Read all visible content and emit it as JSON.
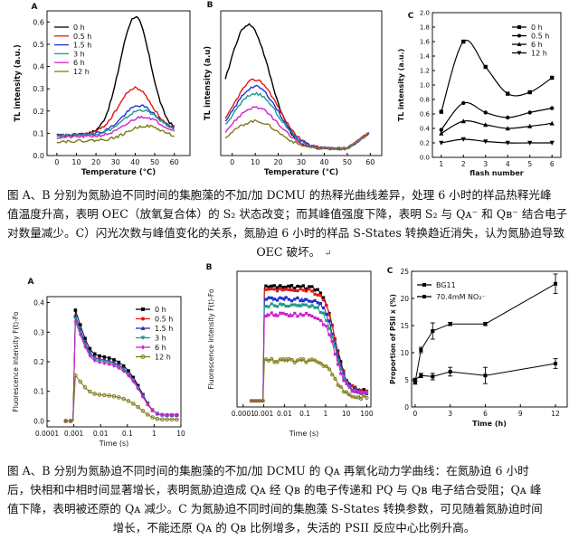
{
  "figure1": {
    "panelA": {
      "letter": "A",
      "chart_data": {
        "type": "line",
        "xlabel": "Temperature (°C)",
        "ylabel": "TL intensity (a.u.)",
        "xlim": [
          -5,
          68
        ],
        "ylim": [
          0,
          0.65
        ],
        "xticks": [
          "0",
          "10",
          "20",
          "30",
          "40",
          "50",
          "60"
        ],
        "yticks": [
          "0.0",
          "0.1",
          "0.2",
          "0.3",
          "0.4",
          "0.5",
          "0.6"
        ],
        "legend": "top-left",
        "series": [
          {
            "name": "0 h",
            "color": "#000000",
            "peak_x": 40,
            "peak_y": 0.62,
            "width": 11,
            "base": 0.1
          },
          {
            "name": "0.5 h",
            "color": "#e01818",
            "peak_x": 40,
            "peak_y": 0.3,
            "width": 12,
            "base": 0.1
          },
          {
            "name": "1.5 h",
            "color": "#2030d0",
            "peak_x": 42,
            "peak_y": 0.22,
            "width": 12,
            "base": 0.1
          },
          {
            "name": "3 h",
            "color": "#1f9a8a",
            "peak_x": 43,
            "peak_y": 0.2,
            "width": 12,
            "base": 0.1
          },
          {
            "name": "6 h",
            "color": "#d020d0",
            "peak_x": 44,
            "peak_y": 0.17,
            "width": 12,
            "base": 0.09
          },
          {
            "name": "12 h",
            "color": "#7d7d18",
            "peak_x": 45,
            "peak_y": 0.13,
            "width": 12,
            "base": 0.07
          }
        ]
      }
    },
    "panelB": {
      "letter": "B",
      "chart_data": {
        "type": "line",
        "xlabel": "Temperature (°C)",
        "ylabel": "TL intensity (a.u)",
        "xlim": [
          -5,
          65
        ],
        "xticks": [
          "0",
          "10",
          "20",
          "30",
          "40",
          "50",
          "60"
        ],
        "series": [
          {
            "name": "0 h",
            "color": "#000000",
            "peak_x": 7,
            "peak_y": 0.95,
            "width": 13,
            "base": 0.05
          },
          {
            "name": "0.5 h",
            "color": "#e01818",
            "peak_x": 10,
            "peak_y": 0.55,
            "width": 14,
            "base": 0.05
          },
          {
            "name": "1.5 h",
            "color": "#2030d0",
            "peak_x": 10,
            "peak_y": 0.5,
            "width": 14,
            "base": 0.05
          },
          {
            "name": "3 h",
            "color": "#1f9a8a",
            "peak_x": 10,
            "peak_y": 0.45,
            "width": 14,
            "base": 0.05
          },
          {
            "name": "6 h",
            "color": "#d020d0",
            "peak_x": 10,
            "peak_y": 0.35,
            "width": 14,
            "base": 0.05
          },
          {
            "name": "12 h",
            "color": "#7d7d18",
            "peak_x": 10,
            "peak_y": 0.25,
            "width": 14,
            "base": 0.05
          }
        ]
      }
    },
    "panelC": {
      "letter": "C",
      "chart_data": {
        "type": "line",
        "xlabel": "flash number",
        "ylabel": "TL intensity (a.u.)",
        "xlim": [
          0.6,
          6.4
        ],
        "ylim": [
          0,
          2.0
        ],
        "x": [
          1,
          2,
          3,
          4,
          5,
          6
        ],
        "xticks": [
          "1",
          "2",
          "3",
          "4",
          "5",
          "6"
        ],
        "yticks": [
          "0.0",
          "0.2",
          "0.4",
          "0.6",
          "0.8",
          "1.0",
          "1.2",
          "1.4",
          "1.6",
          "1.8",
          "2.0"
        ],
        "legend": "top-right",
        "series": [
          {
            "name": "0 h",
            "marker": "square",
            "values": [
              0.63,
              1.6,
              1.25,
              0.88,
              0.9,
              1.1
            ]
          },
          {
            "name": "0.5 h",
            "marker": "circle",
            "values": [
              0.38,
              0.75,
              0.62,
              0.55,
              0.62,
              0.68
            ]
          },
          {
            "name": "6 h",
            "marker": "triangle-up",
            "values": [
              0.33,
              0.5,
              0.45,
              0.4,
              0.43,
              0.47
            ]
          },
          {
            "name": "12 h",
            "marker": "triangle-down",
            "values": [
              0.2,
              0.25,
              0.22,
              0.2,
              0.2,
              0.2
            ]
          }
        ]
      }
    }
  },
  "figure2": {
    "panelA": {
      "letter": "A",
      "chart_data": {
        "type": "scatter",
        "xlabel": "Time (s)",
        "ylabel": "Fluorescence intensity F(t)-Fo",
        "xscale": "log",
        "xlim": [
          0.0001,
          10
        ],
        "ylim": [
          -0.02,
          0.42
        ],
        "xticks": [
          "0.0001",
          "0.001",
          "0.01",
          "0.1",
          "1",
          "10"
        ],
        "yticks": [
          "0.0",
          "0.1",
          "0.2",
          "0.3",
          "0.4"
        ],
        "legend": "top-right",
        "series": [
          {
            "name": "0 h",
            "color": "#000000",
            "marker": "square",
            "peak": 0.39,
            "tail": 0.02
          },
          {
            "name": "0.5 h",
            "color": "#e01818",
            "marker": "circle",
            "peak": 0.37,
            "tail": 0.02
          },
          {
            "name": "1.5 h",
            "color": "#2030d0",
            "marker": "triangle-up",
            "peak": 0.37,
            "tail": 0.02
          },
          {
            "name": "3 h",
            "color": "#1f9a8a",
            "marker": "triangle-down",
            "peak": 0.36,
            "tail": 0.02
          },
          {
            "name": "6 h",
            "color": "#d020d0",
            "marker": "diamond",
            "peak": 0.35,
            "tail": 0.02
          },
          {
            "name": "12 h",
            "color": "#7d7d18",
            "marker": "circle-open",
            "peak": 0.16,
            "tail": 0.005
          }
        ]
      }
    },
    "panelB": {
      "letter": "B",
      "chart_data": {
        "type": "scatter",
        "xlabel": "Time (s)",
        "ylabel": "Fluorescence intensity F(t)-Fo",
        "xscale": "log",
        "xlim": [
          0.0001,
          100
        ],
        "xticks": [
          "0.0001",
          "0.001",
          "0.01",
          "0.1",
          "1",
          "10",
          "100"
        ],
        "series": [
          {
            "color": "#000000",
            "plateau": 0.37
          },
          {
            "color": "#e01818",
            "plateau": 0.36
          },
          {
            "color": "#2030d0",
            "plateau": 0.33
          },
          {
            "color": "#1f9a8a",
            "plateau": 0.31
          },
          {
            "color": "#d020d0",
            "plateau": 0.28
          },
          {
            "color": "#7d7d18",
            "plateau": 0.13
          }
        ]
      }
    },
    "panelC": {
      "letter": "C",
      "chart_data": {
        "type": "line",
        "xlabel": "Time (h)",
        "ylabel": "Proportion of PSII x (%)",
        "xlim": [
          -0.3,
          13
        ],
        "ylim": [
          0,
          25
        ],
        "xticks": [
          "0",
          "3",
          "6",
          "9",
          "12"
        ],
        "yticks": [
          "0",
          "5",
          "10",
          "15",
          "20",
          "25"
        ],
        "legend": "top-left",
        "series": [
          {
            "name": "BG11",
            "x": [
              0,
              0.5,
              1.5,
              3,
              6,
              12
            ],
            "values": [
              5.0,
              5.8,
              5.6,
              6.5,
              5.8,
              8.0
            ],
            "err": [
              0.3,
              0.4,
              0.6,
              0.8,
              1.5,
              0.9
            ]
          },
          {
            "name": "70.4mM NO₂⁻",
            "x": [
              0,
              0.5,
              1.5,
              3,
              6,
              12
            ],
            "values": [
              4.5,
              10.5,
              14.0,
              15.3,
              15.3,
              22.7
            ],
            "err": [
              0.3,
              0.5,
              1.5,
              0.3,
              0.3,
              1.8
            ]
          }
        ]
      }
    }
  },
  "caption1": {
    "line1": "图 A、B 分别为氮胁迫不同时间的集胞藻的不加/加 DCMU 的热释光曲线差异，处理 6 小时的样品热释光峰",
    "line2": "值温度升高，表明 OEC（放氧复合体）的 S₂ 状态改变；而其峰值强度下降，表明 S₂ 与 Qᴀ⁻ 和 Qʙ⁻ 结合电子",
    "line3": "对数量减少。C）闪光次数与峰值变化的关系，氮胁迫 6 小时的样品 S-States 转换趋近消失，认为氮胁迫导致",
    "line4": "OEC 破坏。",
    "end_mark": "↵"
  },
  "caption2": {
    "line1": "图 A、B 分别为氮胁迫不同时间的集胞藻的不加/加 DCMU 的 Qᴀ 再氧化动力学曲线：在氮胁迫 6 小时",
    "line2": "后，快相和中相时间显著增长，表明氮胁迫造成 Qᴀ 经 Qʙ 的电子传递和 PQ 与 Qʙ 电子结合受阻；Qᴀ 峰",
    "line3": "值下降，表明被还原的 Qᴀ 减少。C 为氮胁迫不同时间的集胞藻 S-States 转换参数，可见随着氮胁迫时间",
    "line4": "增长，不能还原 Qᴀ 的 Qʙ 比例增多，失活的 PSII 反应中心比例升高。",
    "end_mark": "↵"
  }
}
